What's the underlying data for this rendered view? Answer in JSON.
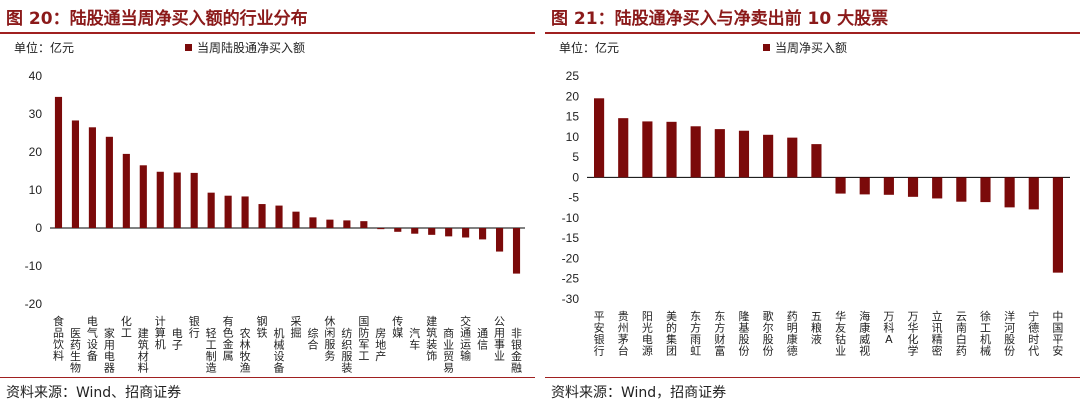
{
  "colors": {
    "bar": "#7b0a0a",
    "title": "#8b1a1a",
    "rule": "#a02020"
  },
  "panels": [
    {
      "title": "图 20：陆股通当周净买入额的行业分布",
      "unit": "单位：亿元",
      "source": "资料来源：Wind、招商证券",
      "chart_data": {
        "type": "bar",
        "categories": [
          "食品饮料",
          "医药生物",
          "电气设备",
          "家用电器",
          "化工",
          "建筑材料",
          "计算机",
          "电子",
          "银行",
          "轻工制造",
          "有色金属",
          "农林牧渔",
          "钢铁",
          "机械设备",
          "采掘",
          "综合",
          "休闲服务",
          "纺织服装",
          "国防军工",
          "房地产",
          "传媒",
          "汽车",
          "建筑装饰",
          "商业贸易",
          "交通运输",
          "通信",
          "公用事业",
          "非银金融"
        ],
        "series": [
          {
            "name": "当周陆股通净买入额",
            "values": [
              34.5,
              28.3,
              26.5,
              24.0,
              19.5,
              16.5,
              14.8,
              14.6,
              14.5,
              9.3,
              8.5,
              8.3,
              6.3,
              5.9,
              4.3,
              2.8,
              2.2,
              2.0,
              1.8,
              -0.3,
              -1.0,
              -1.5,
              -1.8,
              -2.2,
              -2.5,
              -3.0,
              -6.2,
              -12.0
            ]
          }
        ],
        "ylim": [
          -20,
          40
        ],
        "yticks": [
          -20,
          -10,
          0,
          10,
          20,
          30,
          40
        ],
        "legend": "top"
      }
    },
    {
      "title": "图 21：陆股通净买入与净卖出前 10 大股票",
      "unit": "单位：亿元",
      "source": "资料来源：Wind，招商证券",
      "chart_data": {
        "type": "bar",
        "categories": [
          "平安银行",
          "贵州茅台",
          "阳光电源",
          "美的集团",
          "东方雨虹",
          "东方财富",
          "隆基股份",
          "歌尔股份",
          "药明康德",
          "五粮液",
          "华友钴业",
          "海康威视",
          "万科A",
          "万华化学",
          "立讯精密",
          "云南白药",
          "徐工机械",
          "洋河股份",
          "宁德时代",
          "中国平安"
        ],
        "series": [
          {
            "name": "当周净买入额",
            "values": [
              19.5,
              14.6,
              13.8,
              13.7,
              12.6,
              11.9,
              11.5,
              10.5,
              9.8,
              8.2,
              -4.0,
              -4.2,
              -4.3,
              -4.8,
              -5.2,
              -6.0,
              -6.1,
              -7.4,
              -7.9,
              -23.5
            ]
          }
        ],
        "ylim": [
          -30,
          25
        ],
        "yticks": [
          -30,
          -25,
          -20,
          -15,
          -10,
          -5,
          0,
          5,
          10,
          15,
          20,
          25
        ],
        "legend": "top"
      }
    }
  ]
}
